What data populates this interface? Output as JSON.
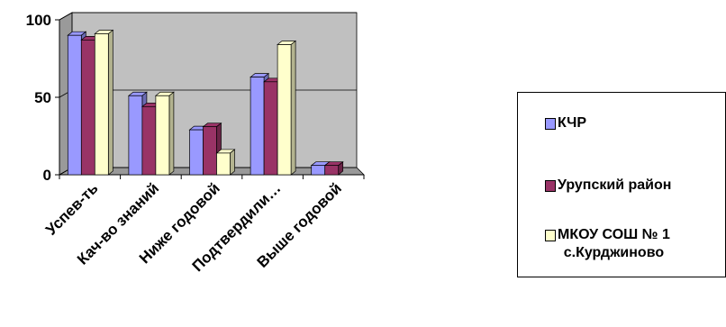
{
  "chart_data": {
    "type": "bar",
    "categories": [
      "Успев-ть",
      "Кач-во знаний",
      "Ниже годовой",
      "Подтвердили…",
      "Выше годовой"
    ],
    "series": [
      {
        "name": "КЧР",
        "values": [
          90,
          51,
          29,
          63,
          6
        ],
        "color": "#9999ff"
      },
      {
        "name": "Урупский район",
        "values": [
          87,
          44,
          31,
          60,
          6
        ],
        "color": "#993366"
      },
      {
        "name": "МКОУ СОШ № 1\nс.Курджиново",
        "values": [
          91,
          51,
          14,
          84,
          0
        ],
        "color": "#ffffcc"
      }
    ],
    "yticks": [
      "0",
      "50",
      "100"
    ],
    "ylim": [
      0,
      100
    ],
    "grid": true,
    "legend": "right",
    "plot_background": "#c0c0c0"
  }
}
